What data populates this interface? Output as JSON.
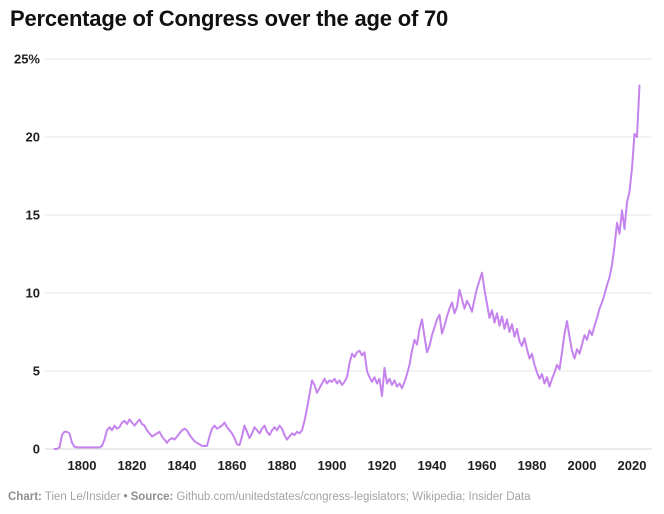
{
  "title": "Percentage of Congress over the age of 70",
  "footer": {
    "chart_label": "Chart:",
    "chart_credit": "Tien Le/Insider",
    "separator": "•",
    "source_label": "Source:",
    "source_text": "Github.com/unitedstates/congress-legislators; Wikipedia; Insider Data"
  },
  "colors": {
    "line": "#c583ee",
    "grid": "#e7e7e7",
    "baseline": "#d4d4d4",
    "title_text": "#111111",
    "tick_text": "#1f1f1f",
    "footer_text": "#a3a3a3",
    "footer_label": "#8f8f8f",
    "background": "#ffffff"
  },
  "chart_data": {
    "type": "line",
    "title": "Percentage of Congress over the age of 70",
    "xlabel": "",
    "ylabel": "",
    "xlim": [
      1789,
      2023
    ],
    "ylim": [
      0,
      25
    ],
    "grid": true,
    "legend_position": "none",
    "x_ticks": [
      1800,
      1820,
      1840,
      1860,
      1880,
      1900,
      1920,
      1940,
      1960,
      1980,
      2000,
      2020
    ],
    "y_ticks": [
      0,
      5,
      10,
      15,
      20,
      25
    ],
    "y_tick_labels": [
      "0",
      "5",
      "10",
      "15",
      "20",
      "25%"
    ],
    "series": [
      {
        "name": "Percentage of Congress over the age of 70",
        "color": "#c583ee",
        "points": [
          [
            1789,
            0
          ],
          [
            1790,
            0
          ],
          [
            1791,
            0.1
          ],
          [
            1792,
            0.9
          ],
          [
            1793,
            1.1
          ],
          [
            1794,
            1.1
          ],
          [
            1795,
            1.0
          ],
          [
            1796,
            0.4
          ],
          [
            1797,
            0.15
          ],
          [
            1798,
            0.1
          ],
          [
            1799,
            0.1
          ],
          [
            1800,
            0.1
          ],
          [
            1801,
            0.1
          ],
          [
            1802,
            0.1
          ],
          [
            1803,
            0.1
          ],
          [
            1804,
            0.1
          ],
          [
            1805,
            0.1
          ],
          [
            1806,
            0.1
          ],
          [
            1807,
            0.1
          ],
          [
            1808,
            0.2
          ],
          [
            1809,
            0.6
          ],
          [
            1810,
            1.2
          ],
          [
            1811,
            1.4
          ],
          [
            1812,
            1.2
          ],
          [
            1813,
            1.5
          ],
          [
            1814,
            1.3
          ],
          [
            1815,
            1.4
          ],
          [
            1816,
            1.7
          ],
          [
            1817,
            1.8
          ],
          [
            1818,
            1.6
          ],
          [
            1819,
            1.9
          ],
          [
            1820,
            1.7
          ],
          [
            1821,
            1.5
          ],
          [
            1822,
            1.7
          ],
          [
            1823,
            1.9
          ],
          [
            1824,
            1.6
          ],
          [
            1825,
            1.5
          ],
          [
            1826,
            1.2
          ],
          [
            1827,
            1.0
          ],
          [
            1828,
            0.8
          ],
          [
            1829,
            0.9
          ],
          [
            1830,
            1.0
          ],
          [
            1831,
            1.1
          ],
          [
            1832,
            0.8
          ],
          [
            1833,
            0.6
          ],
          [
            1834,
            0.4
          ],
          [
            1835,
            0.6
          ],
          [
            1836,
            0.7
          ],
          [
            1837,
            0.6
          ],
          [
            1838,
            0.8
          ],
          [
            1839,
            1.0
          ],
          [
            1840,
            1.2
          ],
          [
            1841,
            1.3
          ],
          [
            1842,
            1.2
          ],
          [
            1843,
            0.9
          ],
          [
            1844,
            0.7
          ],
          [
            1845,
            0.5
          ],
          [
            1846,
            0.4
          ],
          [
            1847,
            0.3
          ],
          [
            1848,
            0.2
          ],
          [
            1849,
            0.2
          ],
          [
            1850,
            0.2
          ],
          [
            1851,
            0.8
          ],
          [
            1852,
            1.3
          ],
          [
            1853,
            1.5
          ],
          [
            1854,
            1.3
          ],
          [
            1855,
            1.4
          ],
          [
            1856,
            1.5
          ],
          [
            1857,
            1.7
          ],
          [
            1858,
            1.4
          ],
          [
            1859,
            1.2
          ],
          [
            1860,
            1.0
          ],
          [
            1861,
            0.7
          ],
          [
            1862,
            0.3
          ],
          [
            1863,
            0.25
          ],
          [
            1864,
            0.8
          ],
          [
            1865,
            1.5
          ],
          [
            1866,
            1.1
          ],
          [
            1867,
            0.7
          ],
          [
            1868,
            1.0
          ],
          [
            1869,
            1.4
          ],
          [
            1870,
            1.2
          ],
          [
            1871,
            1.0
          ],
          [
            1872,
            1.3
          ],
          [
            1873,
            1.5
          ],
          [
            1874,
            1.1
          ],
          [
            1875,
            0.9
          ],
          [
            1876,
            1.2
          ],
          [
            1877,
            1.4
          ],
          [
            1878,
            1.2
          ],
          [
            1879,
            1.5
          ],
          [
            1880,
            1.3
          ],
          [
            1881,
            0.9
          ],
          [
            1882,
            0.6
          ],
          [
            1883,
            0.8
          ],
          [
            1884,
            1.0
          ],
          [
            1885,
            0.9
          ],
          [
            1886,
            1.1
          ],
          [
            1887,
            1.0
          ],
          [
            1888,
            1.2
          ],
          [
            1889,
            1.8
          ],
          [
            1890,
            2.6
          ],
          [
            1891,
            3.5
          ],
          [
            1892,
            4.4
          ],
          [
            1893,
            4.1
          ],
          [
            1894,
            3.6
          ],
          [
            1895,
            3.9
          ],
          [
            1896,
            4.2
          ],
          [
            1897,
            4.5
          ],
          [
            1898,
            4.2
          ],
          [
            1899,
            4.4
          ],
          [
            1900,
            4.3
          ],
          [
            1901,
            4.5
          ],
          [
            1902,
            4.2
          ],
          [
            1903,
            4.4
          ],
          [
            1904,
            4.1
          ],
          [
            1905,
            4.3
          ],
          [
            1906,
            4.6
          ],
          [
            1907,
            5.5
          ],
          [
            1908,
            6.1
          ],
          [
            1909,
            5.9
          ],
          [
            1910,
            6.2
          ],
          [
            1911,
            6.3
          ],
          [
            1912,
            6.0
          ],
          [
            1913,
            6.2
          ],
          [
            1914,
            5.0
          ],
          [
            1915,
            4.6
          ],
          [
            1916,
            4.3
          ],
          [
            1917,
            4.6
          ],
          [
            1918,
            4.2
          ],
          [
            1919,
            4.5
          ],
          [
            1920,
            3.4
          ],
          [
            1921,
            5.2
          ],
          [
            1922,
            4.2
          ],
          [
            1923,
            4.5
          ],
          [
            1924,
            4.1
          ],
          [
            1925,
            4.4
          ],
          [
            1926,
            4.0
          ],
          [
            1927,
            4.2
          ],
          [
            1928,
            3.9
          ],
          [
            1929,
            4.3
          ],
          [
            1930,
            4.8
          ],
          [
            1931,
            5.4
          ],
          [
            1932,
            6.3
          ],
          [
            1933,
            7.0
          ],
          [
            1934,
            6.7
          ],
          [
            1935,
            7.7
          ],
          [
            1936,
            8.3
          ],
          [
            1937,
            7.2
          ],
          [
            1938,
            6.2
          ],
          [
            1939,
            6.6
          ],
          [
            1940,
            7.3
          ],
          [
            1941,
            7.8
          ],
          [
            1942,
            8.3
          ],
          [
            1943,
            8.6
          ],
          [
            1944,
            7.4
          ],
          [
            1945,
            7.9
          ],
          [
            1946,
            8.5
          ],
          [
            1947,
            9.0
          ],
          [
            1948,
            9.4
          ],
          [
            1949,
            8.7
          ],
          [
            1950,
            9.1
          ],
          [
            1951,
            10.2
          ],
          [
            1952,
            9.6
          ],
          [
            1953,
            9.0
          ],
          [
            1954,
            9.5
          ],
          [
            1955,
            9.2
          ],
          [
            1956,
            8.8
          ],
          [
            1957,
            9.6
          ],
          [
            1958,
            10.3
          ],
          [
            1959,
            10.8
          ],
          [
            1960,
            11.3
          ],
          [
            1961,
            10.2
          ],
          [
            1962,
            9.3
          ],
          [
            1963,
            8.4
          ],
          [
            1964,
            8.9
          ],
          [
            1965,
            8.1
          ],
          [
            1966,
            8.7
          ],
          [
            1967,
            7.9
          ],
          [
            1968,
            8.5
          ],
          [
            1969,
            7.7
          ],
          [
            1970,
            8.3
          ],
          [
            1971,
            7.5
          ],
          [
            1972,
            8.0
          ],
          [
            1973,
            7.2
          ],
          [
            1974,
            7.7
          ],
          [
            1975,
            6.9
          ],
          [
            1976,
            6.6
          ],
          [
            1977,
            7.1
          ],
          [
            1978,
            6.4
          ],
          [
            1979,
            5.8
          ],
          [
            1980,
            6.1
          ],
          [
            1981,
            5.4
          ],
          [
            1982,
            4.9
          ],
          [
            1983,
            4.5
          ],
          [
            1984,
            4.8
          ],
          [
            1985,
            4.2
          ],
          [
            1986,
            4.6
          ],
          [
            1987,
            4.0
          ],
          [
            1988,
            4.5
          ],
          [
            1989,
            4.9
          ],
          [
            1990,
            5.4
          ],
          [
            1991,
            5.1
          ],
          [
            1992,
            6.2
          ],
          [
            1993,
            7.4
          ],
          [
            1994,
            8.2
          ],
          [
            1995,
            7.2
          ],
          [
            1996,
            6.3
          ],
          [
            1997,
            5.8
          ],
          [
            1998,
            6.4
          ],
          [
            1999,
            6.1
          ],
          [
            2000,
            6.7
          ],
          [
            2001,
            7.3
          ],
          [
            2002,
            7.0
          ],
          [
            2003,
            7.6
          ],
          [
            2004,
            7.3
          ],
          [
            2005,
            7.9
          ],
          [
            2006,
            8.4
          ],
          [
            2007,
            9.0
          ],
          [
            2008,
            9.4
          ],
          [
            2009,
            9.9
          ],
          [
            2010,
            10.5
          ],
          [
            2011,
            11.0
          ],
          [
            2012,
            11.8
          ],
          [
            2013,
            13.0
          ],
          [
            2014,
            14.5
          ],
          [
            2015,
            13.8
          ],
          [
            2016,
            15.3
          ],
          [
            2017,
            14.1
          ],
          [
            2018,
            15.8
          ],
          [
            2019,
            16.5
          ],
          [
            2020,
            18.0
          ],
          [
            2021,
            20.2
          ],
          [
            2022,
            20.0
          ],
          [
            2023,
            23.3
          ]
        ]
      }
    ]
  }
}
